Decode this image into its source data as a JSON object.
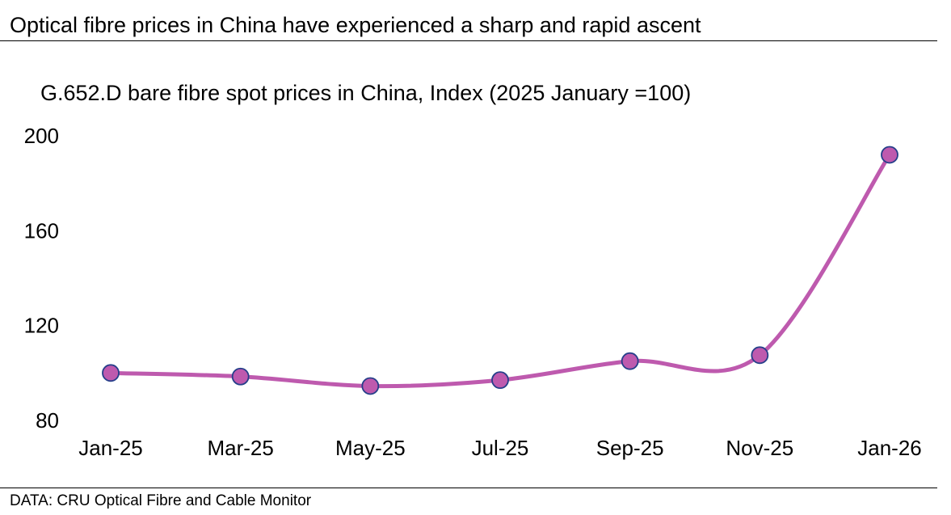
{
  "header": {
    "title": "Optical fibre prices in China have experienced a sharp and rapid ascent"
  },
  "footer": {
    "source": "DATA: CRU Optical Fibre and Cable Monitor"
  },
  "chart_data": {
    "type": "line",
    "title": "G.652.D bare fibre spot prices in China, Index (2025 January =100)",
    "xlabel": "",
    "ylabel": "",
    "categories": [
      "Jan-25",
      "Mar-25",
      "May-25",
      "Jul-25",
      "Sep-25",
      "Nov-25",
      "Jan-26"
    ],
    "series": [
      {
        "name": "G.652.D bare fibre spot price index",
        "values": [
          100,
          98.5,
          94.5,
          97,
          105,
          107.5,
          192
        ]
      }
    ],
    "yticks": [
      80,
      120,
      160,
      200
    ],
    "ylim": [
      80,
      200
    ],
    "grid": false,
    "legend": "none",
    "colors": {
      "line": "#BE5AAE",
      "marker_fill": "#BE5AAE",
      "marker_stroke": "#253F8A"
    }
  }
}
